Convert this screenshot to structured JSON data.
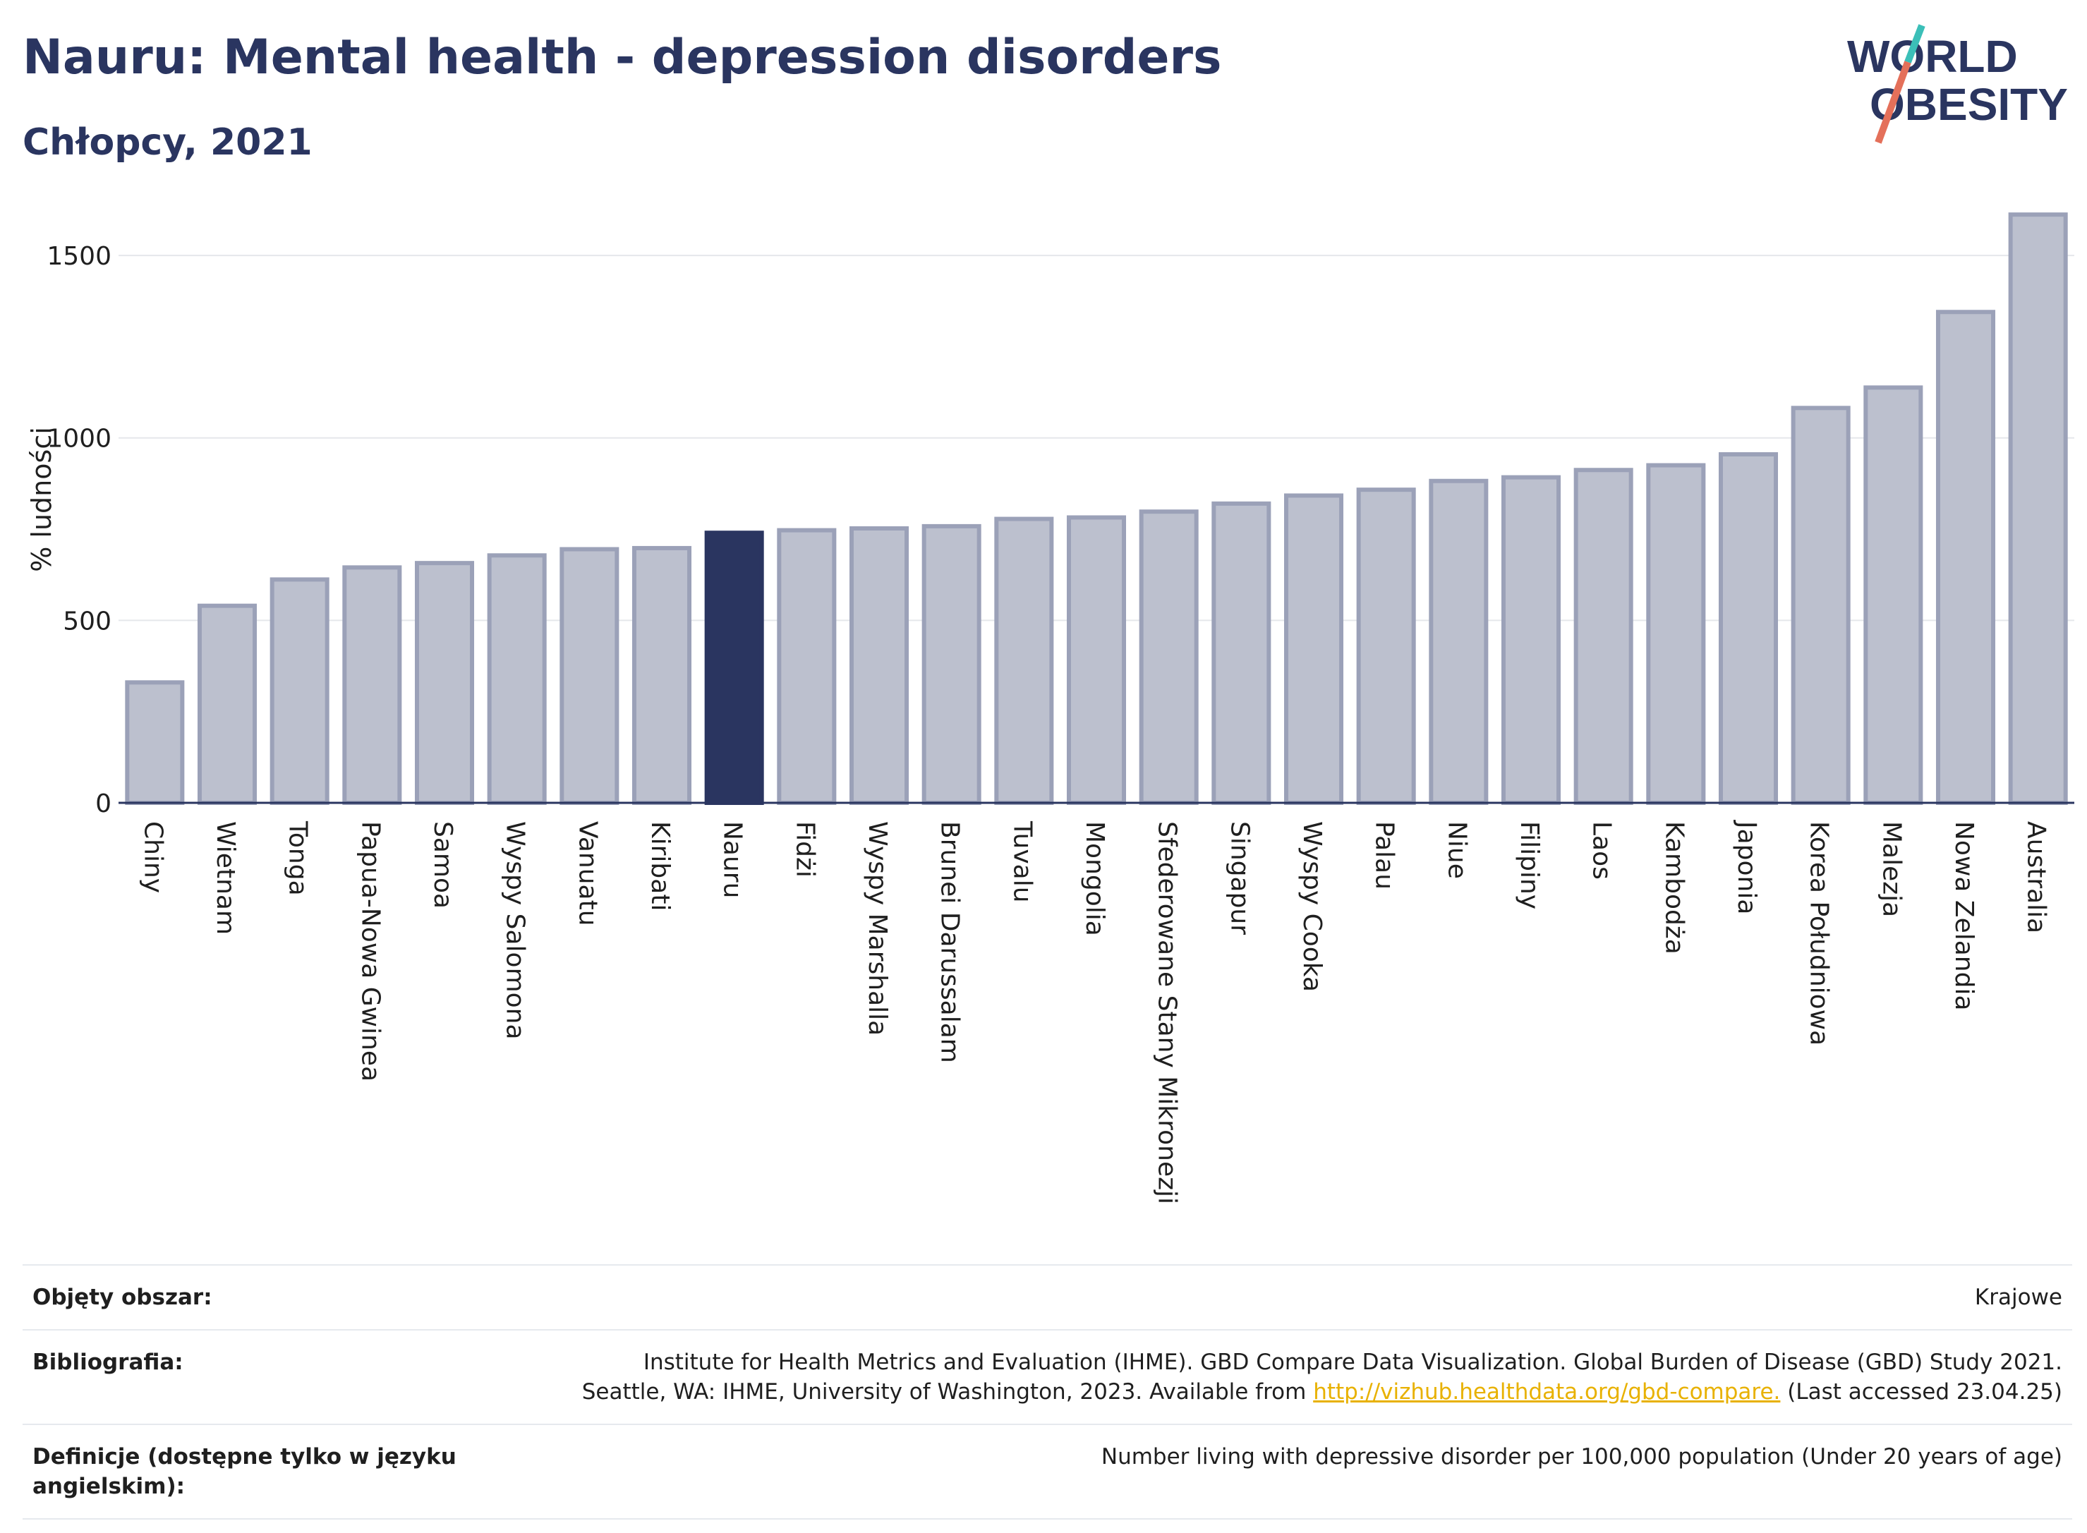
{
  "header": {
    "title": "Nauru: Mental health - depression disorders",
    "subtitle": "Chłopcy, 2021"
  },
  "logo": {
    "line1": "WORLD",
    "line2": "OBESITY",
    "colors": {
      "text": "#2a3560",
      "slash_teal": "#3bbfb8",
      "slash_coral": "#e4705a"
    }
  },
  "chart_data": {
    "type": "bar",
    "title": "Nauru: Mental health - depression disorders",
    "subtitle": "Chłopcy, 2021",
    "ylabel": "% ludności",
    "xlabel": "",
    "ylim": [
      0,
      1620
    ],
    "yticks": [
      0,
      500,
      1000,
      1500
    ],
    "grid": true,
    "highlight": "Nauru",
    "colors": {
      "bar": "#bcc0ce",
      "bar_edge": "#9ba1b8",
      "highlight": "#2a3560",
      "grid": "#e5e7eb",
      "axis": "#2a3560"
    },
    "categories": [
      "Chiny",
      "Wietnam",
      "Tonga",
      "Papua-Nowa Gwinea",
      "Samoa",
      "Wyspy Salomona",
      "Vanuatu",
      "Kiribati",
      "Nauru",
      "Fidżi",
      "Wyspy Marshalla",
      "Brunei Darussalam",
      "Tuvalu",
      "Mongolia",
      "Sfederowane Stany Mikronezji",
      "Singapur",
      "Wyspy Cooka",
      "Palau",
      "Niue",
      "Filipiny",
      "Laos",
      "Kambodża",
      "Japonia",
      "Korea Południowa",
      "Malezja",
      "Nowa Zelandia",
      "Australia"
    ],
    "values": [
      330,
      540,
      612,
      645,
      657,
      678,
      695,
      698,
      740,
      747,
      752,
      758,
      778,
      782,
      798,
      820,
      842,
      858,
      882,
      892,
      912,
      925,
      955,
      1082,
      1138,
      1345,
      1612
    ]
  },
  "footer": {
    "rows": [
      {
        "label": "Objęty obszar:",
        "value": "Krajowe"
      },
      {
        "label": "Bibliografia:",
        "value_line1": "Institute for Health Metrics and Evaluation (IHME). GBD Compare Data Visualization. Global Burden of Disease (GBD) Study 2021.",
        "value_line2_pre": "Seattle, WA: IHME, University of Washington, 2023. Available from ",
        "link": "http://vizhub.healthdata.org/gbd-compare.",
        "value_line2_post": " (Last accessed 23.04.25)"
      },
      {
        "label": "Definicje (dostępne tylko w języku angielskim):",
        "value": "Number living with depressive disorder per 100,000 population (Under 20 years of age)"
      }
    ]
  }
}
